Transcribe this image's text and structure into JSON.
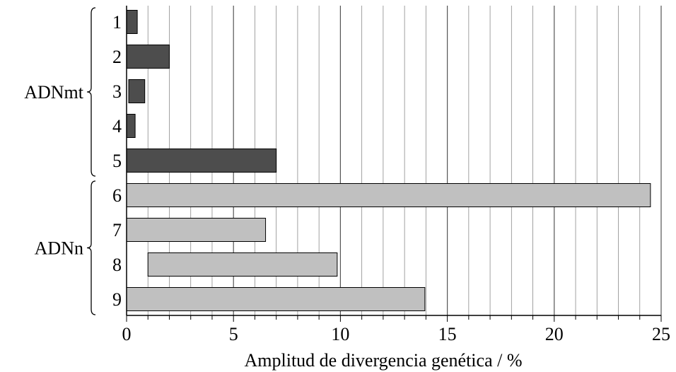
{
  "chart_data": {
    "type": "bar",
    "orientation": "horizontal",
    "xlabel": "Amplitud de divergencia genética / %",
    "ylabel": "",
    "xlim": [
      0,
      25
    ],
    "x_ticks": [
      0,
      5,
      10,
      15,
      20,
      25
    ],
    "x_tick_labels": [
      "0",
      "5",
      "10",
      "15",
      "20",
      "25"
    ],
    "grid": "vertical lines every 1 unit",
    "categories": [
      "1",
      "2",
      "3",
      "4",
      "5",
      "6",
      "7",
      "8",
      "9"
    ],
    "ranges": [
      {
        "category": "1",
        "start": 0,
        "end": 0.5
      },
      {
        "category": "2",
        "start": 0,
        "end": 2.0
      },
      {
        "category": "3",
        "start": 0.1,
        "end": 0.85
      },
      {
        "category": "4",
        "start": 0,
        "end": 0.4
      },
      {
        "category": "5",
        "start": 0,
        "end": 7.0
      },
      {
        "category": "6",
        "start": 0,
        "end": 24.5
      },
      {
        "category": "7",
        "start": 0,
        "end": 6.5
      },
      {
        "category": "8",
        "start": 1.0,
        "end": 9.85
      },
      {
        "category": "9",
        "start": 0,
        "end": 13.95
      }
    ],
    "groups": [
      {
        "label": "ADNmt",
        "categories": [
          "1",
          "2",
          "3",
          "4",
          "5"
        ],
        "color": "#4d4d4d"
      },
      {
        "label": "ADNn",
        "categories": [
          "6",
          "7",
          "8",
          "9"
        ],
        "color": "#c0c0c0"
      }
    ]
  }
}
